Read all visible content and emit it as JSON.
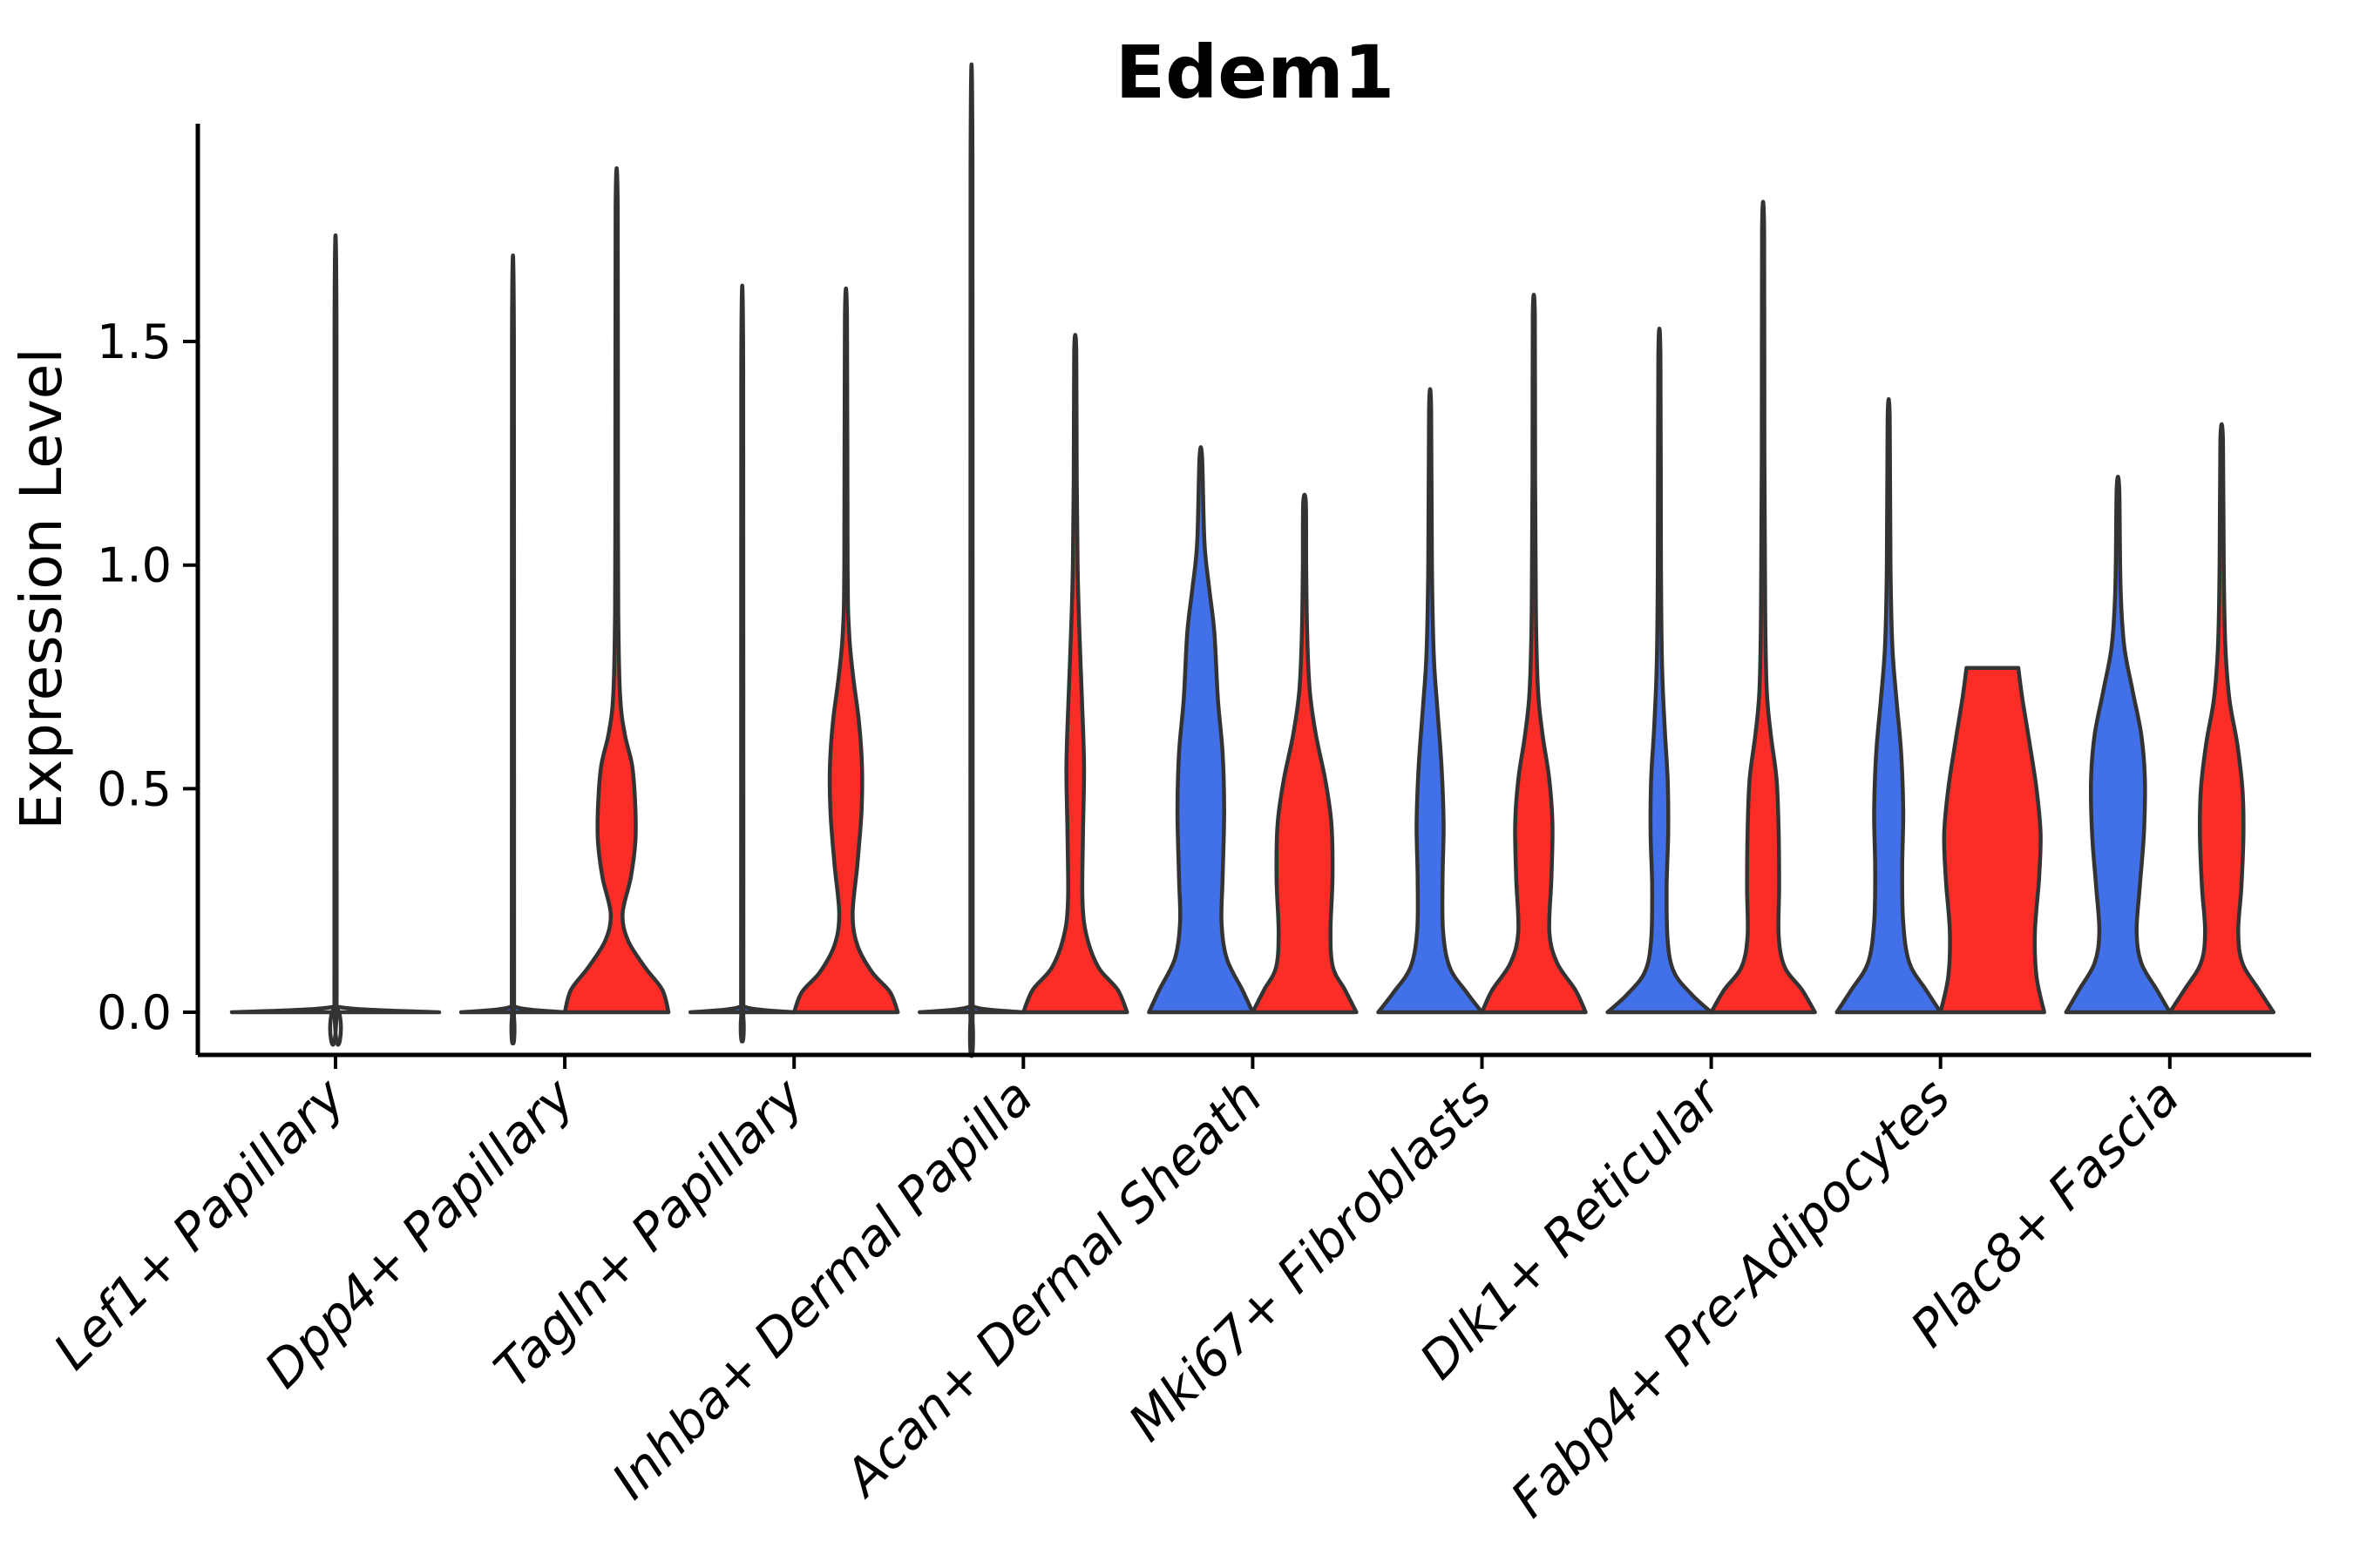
{
  "page": {
    "background": "#ffffff"
  },
  "chart_data": {
    "type": "violin",
    "title": "Edem1",
    "ylabel": "Expression Level",
    "xlabel": "",
    "grid": "off",
    "legend": "none",
    "ytick_labels": [
      "0.0",
      "0.5",
      "1.0",
      "1.5"
    ],
    "ytick_values": [
      0,
      0.5,
      1.0,
      1.5
    ],
    "ylim": [
      -0.095,
      1.99
    ],
    "outline_color": "#333333",
    "axis_color": "#000000",
    "series": [
      {
        "name": "condition-blue",
        "color": "#4170E9"
      },
      {
        "name": "condition-red",
        "color": "#FB2D26"
      }
    ],
    "categories": [
      "Lef1+ Papillary",
      "Dpp4+ Papillary",
      "Tagln+ Papillary",
      "Inhba+ Dermal Papilla",
      "Acan+ Dermal Sheath",
      "Mki67+ Fibroblasts",
      "Dlk1+ Reticular",
      "Fabp4+ Pre-Adipocytes",
      "Plac8+ Fascia"
    ],
    "groups": [
      {
        "category": "Lef1+ Papillary",
        "violins": [
          {
            "series": "single",
            "fill": "none",
            "width_factor": 2,
            "max": 1.55,
            "profile": [
              [
                0,
                1.0
              ],
              [
                0.012,
                0.025
              ],
              [
                0.05,
                0.011
              ],
              [
                1.55,
                0.009
              ]
            ]
          }
        ]
      },
      {
        "category": "Dpp4+ Papillary",
        "violins": [
          {
            "series": "condition-blue",
            "fill": "#4170E9",
            "max": 1.51,
            "profile": [
              [
                0,
                1.0
              ],
              [
                0.012,
                0.05
              ],
              [
                0.05,
                0.022
              ],
              [
                1.51,
                0.018
              ]
            ]
          },
          {
            "series": "condition-red",
            "fill": "#FB2D26",
            "max": 1.8,
            "profile": [
              [
                0,
                1.0
              ],
              [
                0.05,
                0.88
              ],
              [
                0.1,
                0.55
              ],
              [
                0.16,
                0.22
              ],
              [
                0.22,
                0.115
              ],
              [
                0.3,
                0.27
              ],
              [
                0.38,
                0.36
              ],
              [
                0.46,
                0.36
              ],
              [
                0.55,
                0.3
              ],
              [
                0.62,
                0.16
              ],
              [
                0.7,
                0.07
              ],
              [
                0.85,
                0.035
              ],
              [
                1.1,
                0.025
              ],
              [
                1.8,
                0.02
              ]
            ]
          }
        ]
      },
      {
        "category": "Tagln+ Papillary",
        "violins": [
          {
            "series": "condition-blue",
            "fill": "#4170E9",
            "max": 1.45,
            "profile": [
              [
                0,
                1.0
              ],
              [
                0.012,
                0.05
              ],
              [
                0.05,
                0.022
              ],
              [
                1.45,
                0.018
              ]
            ]
          },
          {
            "series": "condition-red",
            "fill": "#FB2D26",
            "max": 1.55,
            "profile": [
              [
                0,
                1.0
              ],
              [
                0.045,
                0.85
              ],
              [
                0.09,
                0.5
              ],
              [
                0.15,
                0.22
              ],
              [
                0.22,
                0.13
              ],
              [
                0.33,
                0.22
              ],
              [
                0.45,
                0.3
              ],
              [
                0.55,
                0.31
              ],
              [
                0.65,
                0.25
              ],
              [
                0.75,
                0.14
              ],
              [
                0.85,
                0.06
              ],
              [
                1.0,
                0.032
              ],
              [
                1.55,
                0.02
              ]
            ]
          }
        ]
      },
      {
        "category": "Inhba+ Dermal Papilla",
        "violins": [
          {
            "series": "condition-blue",
            "fill": "#4170E9",
            "max": 1.89,
            "profile": [
              [
                0,
                1.0
              ],
              [
                0.012,
                0.05
              ],
              [
                0.05,
                0.022
              ],
              [
                1.89,
                0.018
              ]
            ]
          },
          {
            "series": "condition-red",
            "fill": "#FB2D26",
            "max": 1.48,
            "profile": [
              [
                0,
                1.0
              ],
              [
                0.05,
                0.82
              ],
              [
                0.1,
                0.45
              ],
              [
                0.17,
                0.22
              ],
              [
                0.25,
                0.14
              ],
              [
                0.4,
                0.15
              ],
              [
                0.55,
                0.17
              ],
              [
                0.7,
                0.13
              ],
              [
                0.85,
                0.08
              ],
              [
                1.0,
                0.045
              ],
              [
                1.2,
                0.028
              ],
              [
                1.48,
                0.02
              ]
            ]
          }
        ]
      },
      {
        "category": "Acan+ Dermal Sheath",
        "violins": [
          {
            "series": "condition-blue",
            "fill": "#4170E9",
            "max": 1.24,
            "profile": [
              [
                0,
                1.0
              ],
              [
                0.05,
                0.8
              ],
              [
                0.12,
                0.5
              ],
              [
                0.2,
                0.4
              ],
              [
                0.3,
                0.42
              ],
              [
                0.45,
                0.45
              ],
              [
                0.58,
                0.42
              ],
              [
                0.7,
                0.33
              ],
              [
                0.85,
                0.26
              ],
              [
                0.95,
                0.16
              ],
              [
                1.05,
                0.07
              ],
              [
                1.24,
                0.025
              ]
            ]
          },
          {
            "series": "condition-red",
            "fill": "#FB2D26",
            "max": 1.14,
            "profile": [
              [
                0,
                1.0
              ],
              [
                0.05,
                0.78
              ],
              [
                0.1,
                0.55
              ],
              [
                0.18,
                0.5
              ],
              [
                0.3,
                0.54
              ],
              [
                0.42,
                0.52
              ],
              [
                0.52,
                0.4
              ],
              [
                0.62,
                0.22
              ],
              [
                0.72,
                0.1
              ],
              [
                0.85,
                0.05
              ],
              [
                1.0,
                0.032
              ],
              [
                1.14,
                0.025
              ]
            ]
          }
        ]
      },
      {
        "category": "Mki67+ Fibroblasts",
        "violins": [
          {
            "series": "condition-blue",
            "fill": "#4170E9",
            "max": 1.35,
            "profile": [
              [
                0,
                1.0
              ],
              [
                0.045,
                0.7
              ],
              [
                0.1,
                0.38
              ],
              [
                0.18,
                0.25
              ],
              [
                0.3,
                0.24
              ],
              [
                0.42,
                0.26
              ],
              [
                0.55,
                0.22
              ],
              [
                0.68,
                0.14
              ],
              [
                0.8,
                0.07
              ],
              [
                1.0,
                0.035
              ],
              [
                1.35,
                0.02
              ]
            ]
          },
          {
            "series": "condition-red",
            "fill": "#FB2D26",
            "max": 1.56,
            "profile": [
              [
                0,
                1.0
              ],
              [
                0.05,
                0.8
              ],
              [
                0.11,
                0.45
              ],
              [
                0.18,
                0.3
              ],
              [
                0.3,
                0.34
              ],
              [
                0.42,
                0.36
              ],
              [
                0.52,
                0.3
              ],
              [
                0.62,
                0.17
              ],
              [
                0.72,
                0.08
              ],
              [
                0.9,
                0.04
              ],
              [
                1.2,
                0.025
              ],
              [
                1.56,
                0.02
              ]
            ]
          }
        ]
      },
      {
        "category": "Dlk1+ Reticular",
        "violins": [
          {
            "series": "condition-blue",
            "fill": "#4170E9",
            "max": 1.47,
            "profile": [
              [
                0,
                1.0
              ],
              [
                0.04,
                0.62
              ],
              [
                0.09,
                0.28
              ],
              [
                0.16,
                0.16
              ],
              [
                0.28,
                0.14
              ],
              [
                0.4,
                0.17
              ],
              [
                0.52,
                0.16
              ],
              [
                0.64,
                0.1
              ],
              [
                0.78,
                0.05
              ],
              [
                1.0,
                0.03
              ],
              [
                1.47,
                0.02
              ]
            ]
          },
          {
            "series": "condition-red",
            "fill": "#FB2D26",
            "max": 1.75,
            "profile": [
              [
                0,
                1.0
              ],
              [
                0.05,
                0.75
              ],
              [
                0.1,
                0.42
              ],
              [
                0.17,
                0.3
              ],
              [
                0.28,
                0.31
              ],
              [
                0.4,
                0.3
              ],
              [
                0.52,
                0.26
              ],
              [
                0.62,
                0.15
              ],
              [
                0.72,
                0.07
              ],
              [
                0.9,
                0.04
              ],
              [
                1.25,
                0.025
              ],
              [
                1.75,
                0.02
              ]
            ]
          }
        ]
      },
      {
        "category": "Fabp4+ Pre-Adipocytes",
        "violins": [
          {
            "series": "condition-blue",
            "fill": "#4170E9",
            "max": 1.33,
            "profile": [
              [
                0,
                1.0
              ],
              [
                0.05,
                0.72
              ],
              [
                0.11,
                0.4
              ],
              [
                0.2,
                0.28
              ],
              [
                0.32,
                0.26
              ],
              [
                0.45,
                0.28
              ],
              [
                0.58,
                0.24
              ],
              [
                0.7,
                0.15
              ],
              [
                0.82,
                0.07
              ],
              [
                1.0,
                0.035
              ],
              [
                1.33,
                0.02
              ]
            ]
          },
          {
            "series": "condition-red",
            "fill": "#FB2D26",
            "max": 0.77,
            "flat_top": true,
            "profile": [
              [
                0,
                1.0
              ],
              [
                0.08,
                0.85
              ],
              [
                0.18,
                0.82
              ],
              [
                0.3,
                0.9
              ],
              [
                0.4,
                0.93
              ],
              [
                0.5,
                0.85
              ],
              [
                0.6,
                0.72
              ],
              [
                0.7,
                0.58
              ],
              [
                0.77,
                0.5
              ]
            ]
          }
        ]
      },
      {
        "category": "Plac8+ Fascia",
        "violins": [
          {
            "series": "condition-blue",
            "fill": "#4170E9",
            "max": 1.17,
            "profile": [
              [
                0,
                1.0
              ],
              [
                0.05,
                0.75
              ],
              [
                0.11,
                0.45
              ],
              [
                0.18,
                0.36
              ],
              [
                0.28,
                0.42
              ],
              [
                0.4,
                0.5
              ],
              [
                0.52,
                0.52
              ],
              [
                0.62,
                0.45
              ],
              [
                0.72,
                0.28
              ],
              [
                0.82,
                0.12
              ],
              [
                0.95,
                0.05
              ],
              [
                1.17,
                0.025
              ]
            ]
          },
          {
            "series": "condition-red",
            "fill": "#FB2D26",
            "max": 1.28,
            "profile": [
              [
                0,
                1.0
              ],
              [
                0.05,
                0.72
              ],
              [
                0.11,
                0.4
              ],
              [
                0.18,
                0.32
              ],
              [
                0.28,
                0.38
              ],
              [
                0.4,
                0.42
              ],
              [
                0.5,
                0.4
              ],
              [
                0.6,
                0.3
              ],
              [
                0.7,
                0.15
              ],
              [
                0.82,
                0.07
              ],
              [
                1.0,
                0.04
              ],
              [
                1.28,
                0.025
              ]
            ]
          }
        ]
      }
    ]
  }
}
